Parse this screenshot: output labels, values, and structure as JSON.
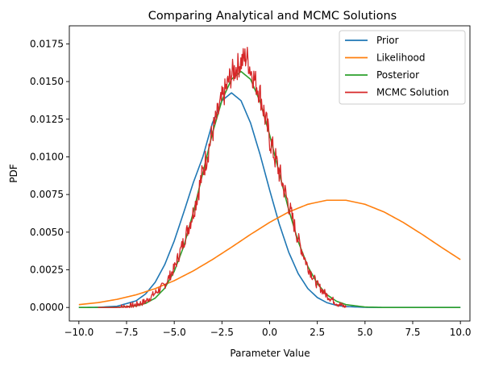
{
  "chart_data": {
    "type": "line",
    "title": "Comparing Analytical and MCMC Solutions",
    "xlabel": "Parameter Value",
    "ylabel": "PDF",
    "xlim": [
      -10.5,
      10.5
    ],
    "ylim": [
      -0.0009,
      0.0187
    ],
    "xticks": [
      -10,
      -7.5,
      -5,
      -2.5,
      0,
      2.5,
      5,
      7.5,
      10
    ],
    "xtick_labels": [
      "−10.0",
      "−7.5",
      "−5.0",
      "−2.5",
      "0.0",
      "2.5",
      "5.0",
      "7.5",
      "10.0"
    ],
    "yticks": [
      0,
      0.0025,
      0.005,
      0.0075,
      0.01,
      0.0125,
      0.015,
      0.0175
    ],
    "ytick_labels": [
      "0.0000",
      "0.0025",
      "0.0050",
      "0.0075",
      "0.0100",
      "0.0125",
      "0.0150",
      "0.0175"
    ],
    "grid": false,
    "legend_position": "top-right",
    "series": [
      {
        "name": "Prior",
        "color": "#1f77b4",
        "x": [
          -10,
          -9,
          -8,
          -7,
          -6.5,
          -6,
          -5.5,
          -5,
          -4.5,
          -4,
          -3.5,
          -3,
          -2.5,
          -2,
          -1.5,
          -1,
          -0.5,
          0,
          0.5,
          1,
          1.5,
          2,
          2.5,
          3,
          3.5,
          4,
          5,
          6,
          7,
          8,
          10
        ],
        "y": [
          0.0,
          1e-05,
          8e-05,
          0.00044,
          0.0009,
          0.00167,
          0.00284,
          0.00442,
          0.00632,
          0.00829,
          0.01,
          0.01225,
          0.01373,
          0.01425,
          0.01373,
          0.01225,
          0.01015,
          0.0078,
          0.00556,
          0.00367,
          0.00224,
          0.00126,
          0.00066,
          0.00032,
          0.00014,
          6e-05,
          1e-05,
          0.0,
          0.0,
          0.0,
          0.0
        ]
      },
      {
        "name": "Likelihood",
        "color": "#ff7f0e",
        "x": [
          -10,
          -9,
          -8,
          -7,
          -6,
          -5,
          -4,
          -3,
          -2,
          -1,
          0,
          1,
          2,
          3,
          4,
          5,
          6,
          7,
          8,
          9,
          10
        ],
        "y": [
          0.00019,
          0.00032,
          0.00054,
          0.00084,
          0.00125,
          0.00178,
          0.00243,
          0.00318,
          0.004,
          0.00485,
          0.00565,
          0.00634,
          0.00685,
          0.00712,
          0.00712,
          0.00685,
          0.00634,
          0.00565,
          0.00485,
          0.004,
          0.00318
        ]
      },
      {
        "name": "Posterior",
        "color": "#2ca02c",
        "x": [
          -10,
          -8,
          -7,
          -6.5,
          -6,
          -5.5,
          -5,
          -4.5,
          -4,
          -3.5,
          -3,
          -2.5,
          -2,
          -1.5,
          -1,
          -0.5,
          0,
          0.5,
          1,
          1.5,
          2,
          2.5,
          3,
          3.5,
          4,
          5,
          6,
          7,
          8,
          10
        ],
        "y": [
          0.0,
          1e-05,
          0.00011,
          0.00027,
          0.00062,
          0.00128,
          0.0024,
          0.00407,
          0.00631,
          0.00894,
          0.01156,
          0.01375,
          0.01515,
          0.01567,
          0.01515,
          0.01366,
          0.01146,
          0.00894,
          0.00649,
          0.00437,
          0.00273,
          0.00158,
          0.00085,
          0.00042,
          0.00019,
          3e-05,
          0.0,
          0.0,
          0.0,
          0.0
        ]
      },
      {
        "name": "MCMC Solution",
        "color": "#d62728",
        "x": [
          -9,
          -8,
          -7.5,
          -7,
          -6.5,
          -6,
          -5.5,
          -5,
          -4.5,
          -4,
          -3.5,
          -3,
          -2.5,
          -2,
          -1.5,
          -1.2,
          -1,
          -0.5,
          0,
          0.5,
          1,
          1.5,
          2,
          2.5,
          3,
          3.5,
          4
        ],
        "y": [
          0.0,
          0.0,
          4e-05,
          0.00018,
          0.0004,
          0.00095,
          0.0015,
          0.0026,
          0.0044,
          0.0063,
          0.009,
          0.0116,
          0.0138,
          0.0155,
          0.0163,
          0.0167,
          0.0158,
          0.0142,
          0.0112,
          0.009,
          0.0068,
          0.0045,
          0.0027,
          0.0015,
          0.0008,
          0.0003,
          0.0
        ]
      }
    ]
  }
}
